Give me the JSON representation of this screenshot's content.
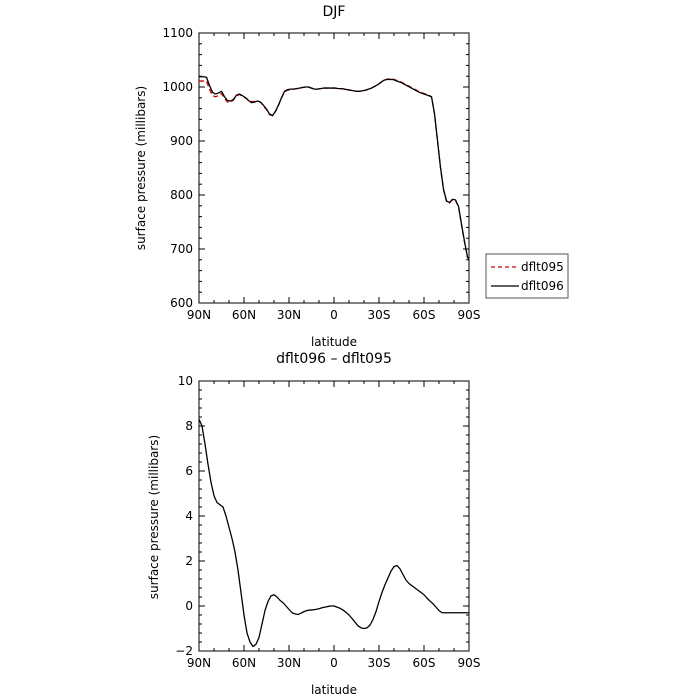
{
  "chart_data": [
    {
      "type": "line",
      "title": "DJF",
      "xlabel": "latitude",
      "ylabel": "surface pressure (millibars)",
      "xlim": [
        90,
        -90
      ],
      "ylim": [
        600,
        1100
      ],
      "xtick_values": [
        90,
        60,
        30,
        0,
        -30,
        -60,
        -90
      ],
      "xtick_labels": [
        "90N",
        "60N",
        "30N",
        "0",
        "30S",
        "60S",
        "90S"
      ],
      "ytick_values": [
        600,
        700,
        800,
        900,
        1000,
        1100
      ],
      "ytick_labels": [
        "600",
        "700",
        "800",
        "900",
        "1000",
        "1100"
      ],
      "grid": false,
      "legend": "right",
      "series": [
        {
          "name": "dflt095",
          "color": "#cc0000",
          "dash": "dashed",
          "x": [
            90,
            87,
            85,
            83,
            81,
            79,
            77,
            75,
            73,
            71,
            69,
            67,
            65,
            63,
            61,
            59,
            57,
            55,
            53,
            51,
            49,
            47,
            45,
            43,
            41,
            39,
            37,
            35,
            33,
            31,
            29,
            27,
            25,
            23,
            21,
            19,
            17,
            15,
            13,
            11,
            9,
            7,
            5,
            3,
            1,
            -1,
            -3,
            -5,
            -7,
            -9,
            -11,
            -13,
            -15,
            -17,
            -19,
            -21,
            -23,
            -25,
            -27,
            -29,
            -31,
            -33,
            -35,
            -37,
            -39,
            -41,
            -43,
            -45,
            -47,
            -49,
            -51,
            -53,
            -55,
            -57,
            -59,
            -61,
            -63,
            -65,
            -67,
            -69,
            -71,
            -73,
            -75,
            -77,
            -79,
            -81,
            -83,
            -85,
            -87,
            -89,
            -90
          ],
          "y": [
            1011,
            1011,
            1011,
            996,
            984,
            982,
            984,
            988,
            979,
            972,
            972,
            976,
            984,
            986,
            983,
            980,
            976,
            973,
            973,
            974,
            972,
            965,
            958,
            949,
            947,
            955,
            966,
            980,
            991,
            994,
            995,
            996,
            997,
            998,
            999,
            1000,
            1000,
            998,
            996,
            996,
            997,
            998,
            998,
            998,
            998,
            998,
            997,
            997,
            996,
            995,
            994,
            993,
            992,
            992,
            993,
            994,
            996,
            998,
            1001,
            1004,
            1008,
            1012,
            1014,
            1015,
            1015,
            1013,
            1011,
            1009,
            1006,
            1003,
            1000,
            997,
            994,
            991,
            989,
            987,
            985,
            982,
            950,
            900,
            850,
            810,
            788,
            785,
            791,
            790,
            778,
            745,
            713,
            685,
            680
          ]
        },
        {
          "name": "dflt096",
          "color": "#000000",
          "dash": "solid",
          "x": [
            90,
            87,
            85,
            83,
            81,
            79,
            77,
            75,
            73,
            71,
            69,
            67,
            65,
            63,
            61,
            59,
            57,
            55,
            53,
            51,
            49,
            47,
            45,
            43,
            41,
            39,
            37,
            35,
            33,
            31,
            29,
            27,
            25,
            23,
            21,
            19,
            17,
            15,
            13,
            11,
            9,
            7,
            5,
            3,
            1,
            -1,
            -3,
            -5,
            -7,
            -9,
            -11,
            -13,
            -15,
            -17,
            -19,
            -21,
            -23,
            -25,
            -27,
            -29,
            -31,
            -33,
            -35,
            -37,
            -39,
            -41,
            -43,
            -45,
            -47,
            -49,
            -51,
            -53,
            -55,
            -57,
            -59,
            -61,
            -63,
            -65,
            -67,
            -69,
            -71,
            -73,
            -75,
            -77,
            -79,
            -81,
            -83,
            -85,
            -87,
            -89,
            -90
          ],
          "y": [
            1019,
            1019,
            1018,
            1003,
            990,
            987,
            989,
            992,
            982,
            975,
            974,
            977,
            985,
            987,
            984,
            980,
            975,
            971,
            972,
            974,
            972,
            966,
            959,
            950,
            947,
            955,
            967,
            980,
            992,
            995,
            996,
            996,
            997,
            998,
            999,
            1000,
            1000,
            998,
            996,
            996,
            997,
            998,
            998,
            998,
            998,
            998,
            997,
            997,
            996,
            995,
            994,
            993,
            992,
            992,
            993,
            994,
            996,
            998,
            1001,
            1004,
            1008,
            1012,
            1014,
            1014,
            1014,
            1012,
            1010,
            1008,
            1005,
            1002,
            999,
            996,
            993,
            990,
            988,
            986,
            984,
            982,
            951,
            901,
            851,
            811,
            789,
            786,
            792,
            791,
            779,
            746,
            714,
            685,
            680
          ]
        }
      ]
    },
    {
      "type": "line",
      "title": "dflt096 – dflt095",
      "xlabel": "latitude",
      "ylabel": "surface pressure (millibars)",
      "xlim": [
        90,
        -90
      ],
      "ylim": [
        -2,
        10
      ],
      "xtick_values": [
        90,
        60,
        30,
        0,
        -30,
        -60,
        -90
      ],
      "xtick_labels": [
        "90N",
        "60N",
        "30N",
        "0",
        "30S",
        "60S",
        "90S"
      ],
      "ytick_values": [
        -2,
        0,
        2,
        4,
        6,
        8,
        10
      ],
      "ytick_labels": [
        "−2",
        "0",
        "2",
        "4",
        "6",
        "8",
        "10"
      ],
      "grid": false,
      "series": [
        {
          "color": "#000000",
          "dash": "solid",
          "x": [
            90,
            88,
            86,
            84,
            82,
            80,
            78,
            76,
            74,
            72,
            70,
            68,
            66,
            64,
            62,
            60,
            58,
            56,
            54,
            52,
            50,
            48,
            46,
            44,
            42,
            40,
            38,
            36,
            34,
            32,
            30,
            28,
            26,
            24,
            22,
            20,
            18,
            16,
            14,
            12,
            10,
            8,
            6,
            4,
            2,
            0,
            -2,
            -4,
            -6,
            -8,
            -10,
            -12,
            -14,
            -16,
            -18,
            -20,
            -22,
            -24,
            -26,
            -28,
            -30,
            -32,
            -34,
            -36,
            -38,
            -40,
            -42,
            -44,
            -46,
            -48,
            -50,
            -52,
            -54,
            -56,
            -58,
            -60,
            -62,
            -64,
            -66,
            -68,
            -70,
            -72,
            -74,
            -76,
            -78,
            -80,
            -82,
            -84,
            -86,
            -88,
            -90
          ],
          "y": [
            8.3,
            8.0,
            7.2,
            6.3,
            5.5,
            4.9,
            4.6,
            4.5,
            4.4,
            4.0,
            3.5,
            3.0,
            2.4,
            1.6,
            0.6,
            -0.4,
            -1.2,
            -1.6,
            -1.8,
            -1.7,
            -1.4,
            -0.8,
            -0.2,
            0.2,
            0.45,
            0.5,
            0.4,
            0.25,
            0.15,
            0.0,
            -0.15,
            -0.3,
            -0.35,
            -0.38,
            -0.32,
            -0.25,
            -0.2,
            -0.18,
            -0.17,
            -0.15,
            -0.12,
            -0.08,
            -0.05,
            -0.02,
            0.0,
            0.0,
            -0.05,
            -0.1,
            -0.18,
            -0.28,
            -0.4,
            -0.55,
            -0.72,
            -0.88,
            -0.97,
            -1.0,
            -0.97,
            -0.85,
            -0.6,
            -0.25,
            0.2,
            0.6,
            0.95,
            1.25,
            1.55,
            1.75,
            1.8,
            1.65,
            1.4,
            1.15,
            1.0,
            0.9,
            0.8,
            0.7,
            0.6,
            0.5,
            0.35,
            0.22,
            0.1,
            -0.05,
            -0.2,
            -0.3,
            -0.3,
            -0.3,
            -0.3,
            -0.3,
            -0.3,
            -0.3,
            -0.3,
            -0.3,
            -0.3
          ]
        }
      ]
    }
  ]
}
